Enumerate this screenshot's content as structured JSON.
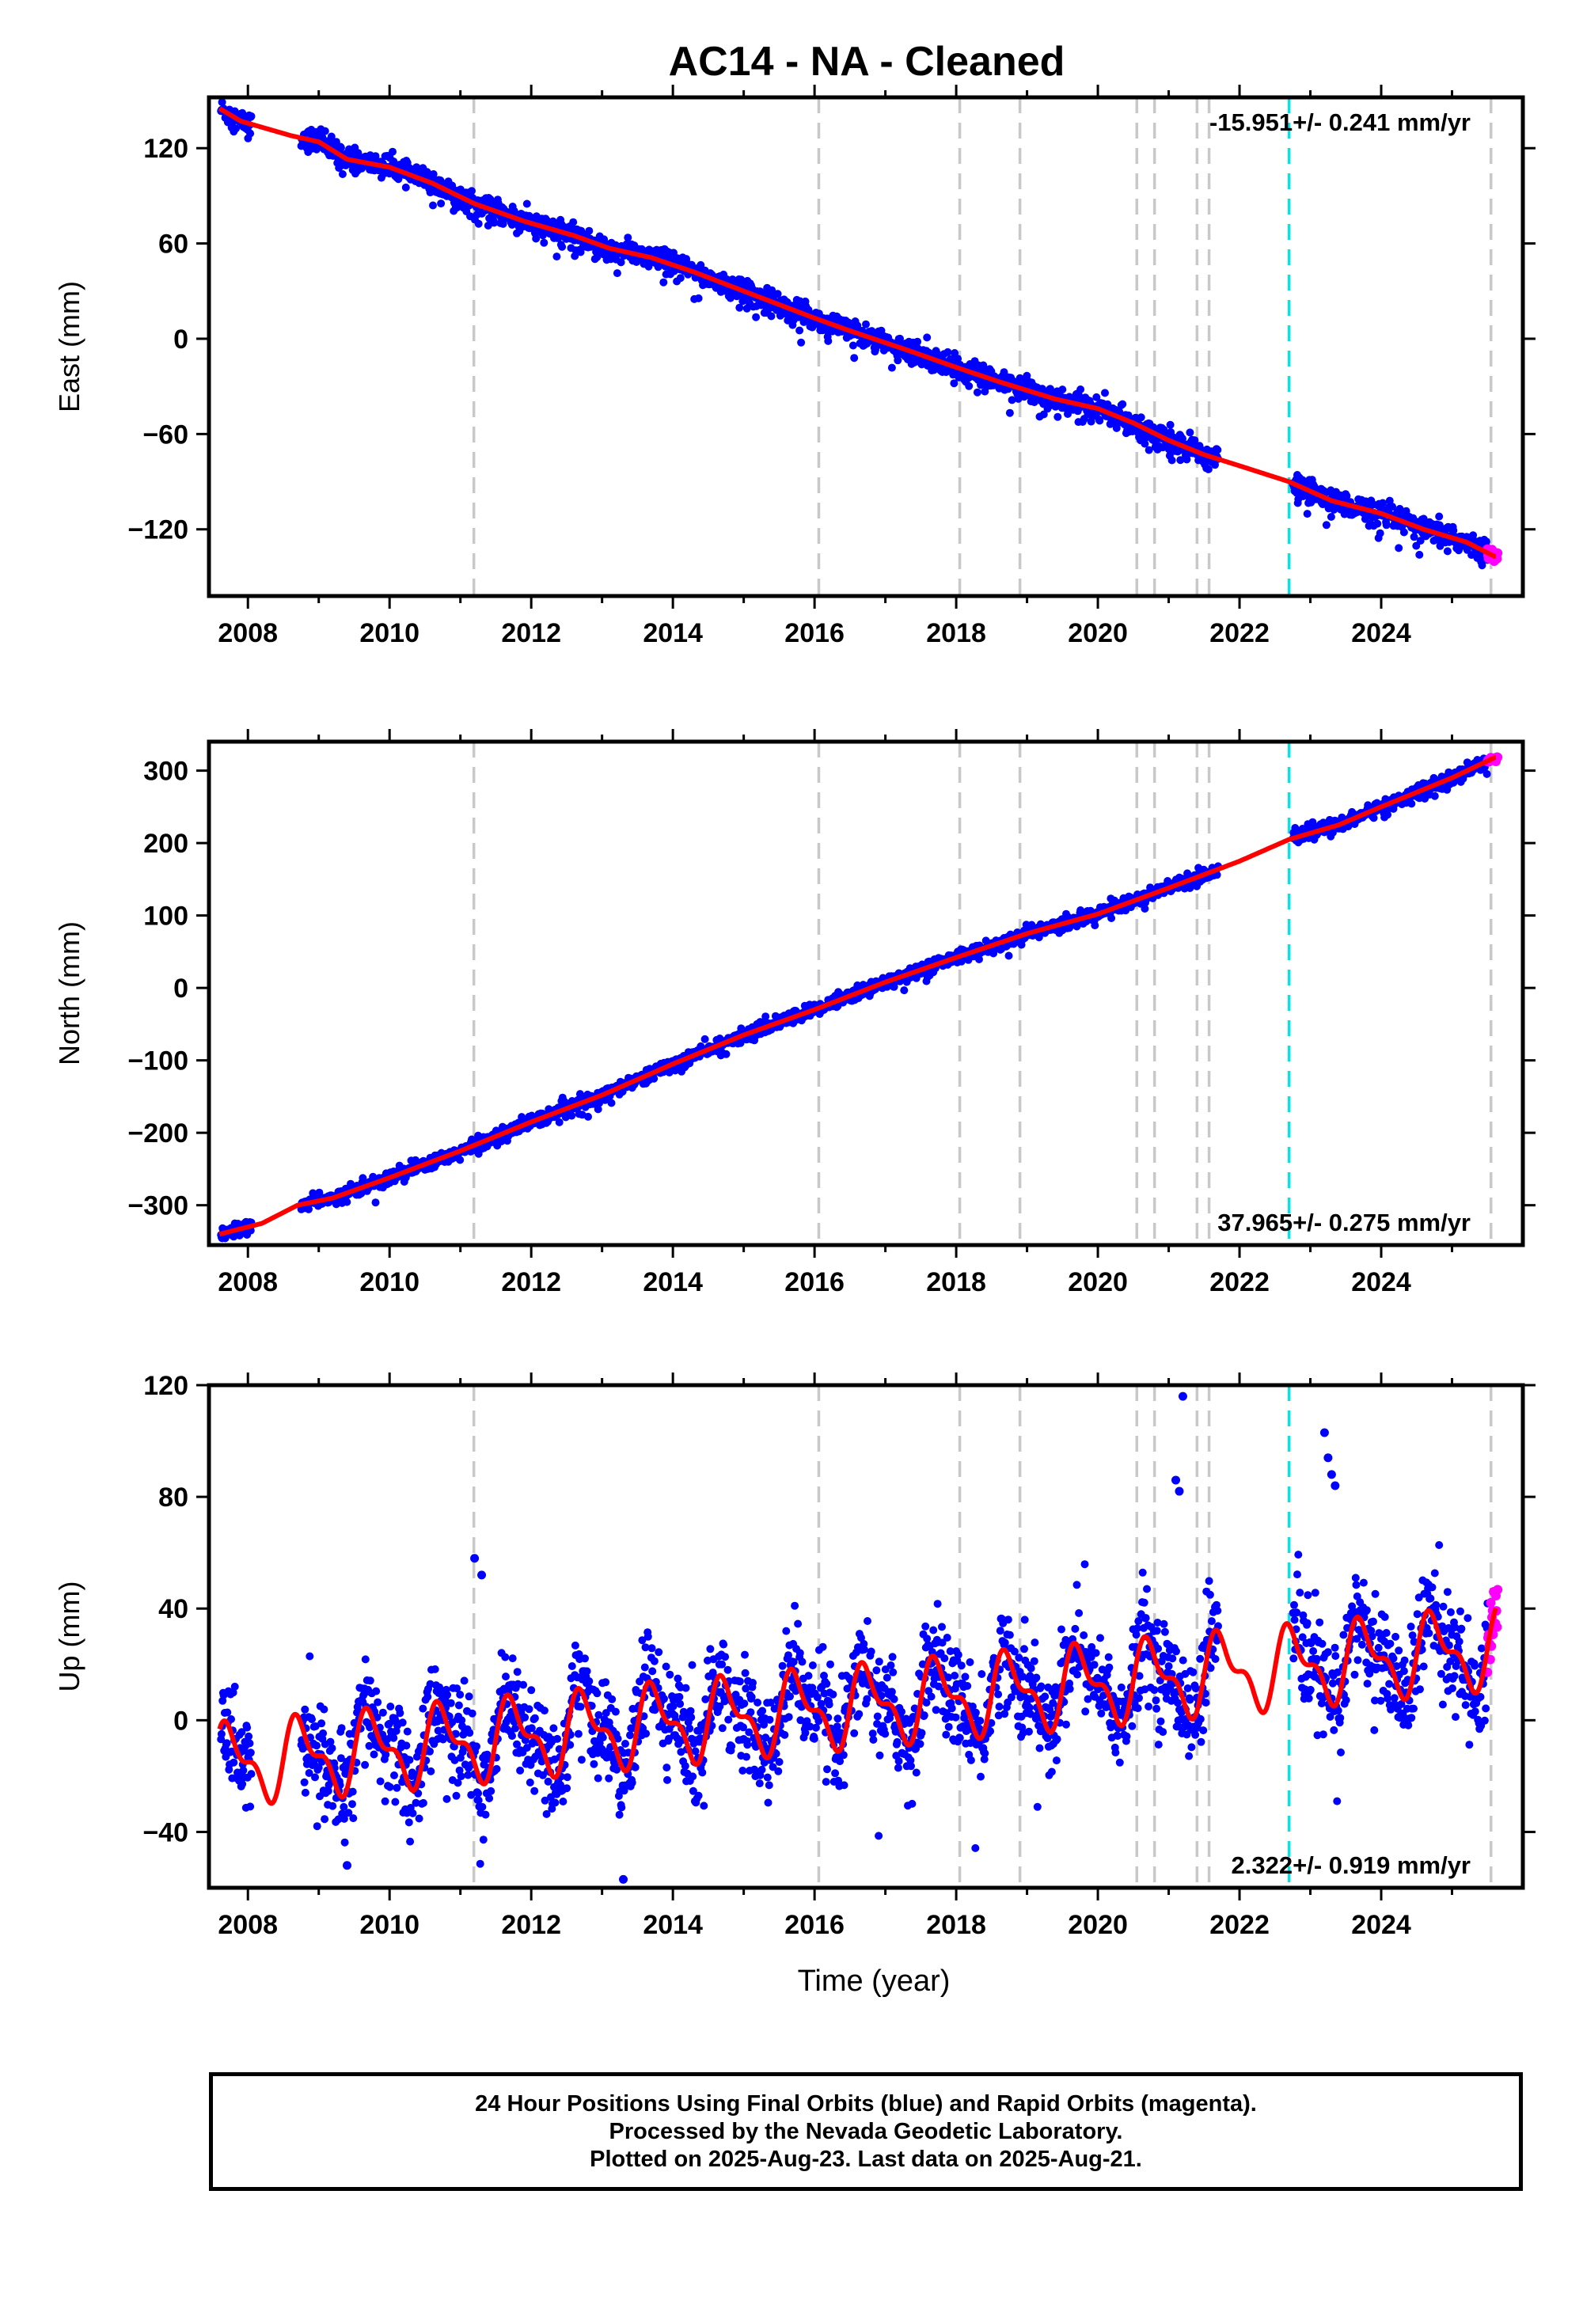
{
  "title": "AC14  - NA - Cleaned",
  "colors": {
    "final_orbits": "#0000ff",
    "rapid_orbits": "#ff00ff",
    "model": "#ff0000",
    "steps": "#c8c8c8",
    "event": "#00e5e5"
  },
  "chart_data": [
    {
      "type": "scatter",
      "panel": "east",
      "ylabel": "East (mm)",
      "xlim": [
        2007.45,
        2026.0
      ],
      "ylim": [
        -162,
        152
      ],
      "xticks": [
        2008,
        2010,
        2012,
        2014,
        2016,
        2018,
        2020,
        2022,
        2024
      ],
      "xtick_labels": [
        "2008",
        "2010",
        "2012",
        "2014",
        "2016",
        "2018",
        "2020",
        "2022",
        "2024"
      ],
      "yticks": [
        -120,
        -60,
        0,
        60,
        120
      ],
      "ytick_labels": [
        "−120",
        "−60",
        "0",
        "60",
        "120"
      ],
      "rate_label": "-15.951+/- 0.241 mm/yr",
      "rate_position": "top-right",
      "gap": [
        2021.7,
        2022.75
      ],
      "steps": [
        2011.19,
        2016.06,
        2018.05,
        2018.9,
        2020.55,
        2020.8,
        2021.4,
        2021.57,
        2025.55
      ],
      "event": 2022.7,
      "series": [
        {
          "name": "Final Orbits",
          "model_x": [
            2007.6,
            2007.9,
            2008.6,
            2009.0,
            2009.4,
            2010.0,
            2010.6,
            2011.2,
            2011.9,
            2012.6,
            2013.1,
            2013.7,
            2014.3,
            2015.0,
            2016.0,
            2016.5,
            2017.3,
            2018.0,
            2018.6,
            2019.4,
            2020.0,
            2020.5,
            2021.0,
            2021.5,
            2022.0,
            2022.7,
            2023.3,
            2024.0,
            2024.6,
            2025.2,
            2025.6
          ],
          "model_y": [
            145,
            137,
            128,
            124,
            113,
            108,
            98,
            85,
            74,
            65,
            57,
            51,
            42,
            30,
            13,
            5,
            -7,
            -18,
            -27,
            -38,
            -44,
            -53,
            -64,
            -73,
            -80,
            -90,
            -102,
            -110,
            -120,
            -128,
            -137
          ]
        }
      ]
    },
    {
      "type": "scatter",
      "panel": "north",
      "ylabel": "North (mm)",
      "xlim": [
        2007.45,
        2026.0
      ],
      "ylim": [
        -355,
        340
      ],
      "xticks": [
        2008,
        2010,
        2012,
        2014,
        2016,
        2018,
        2020,
        2022,
        2024
      ],
      "xtick_labels": [
        "2008",
        "2010",
        "2012",
        "2014",
        "2016",
        "2018",
        "2020",
        "2022",
        "2024"
      ],
      "yticks": [
        -300,
        -200,
        -100,
        0,
        100,
        200,
        300
      ],
      "ytick_labels": [
        "−300",
        "−200",
        "−100",
        "0",
        "100",
        "200",
        "300"
      ],
      "rate_label": "37.965+/- 0.275 mm/yr",
      "rate_position": "bottom-right",
      "gap": [
        2021.7,
        2022.75
      ],
      "steps": [
        2011.19,
        2016.06,
        2018.05,
        2018.9,
        2020.55,
        2020.8,
        2021.4,
        2021.57,
        2025.55
      ],
      "event": 2022.7,
      "series": [
        {
          "name": "Final Orbits",
          "model_x": [
            2007.6,
            2008.2,
            2008.7,
            2009.2,
            2010.0,
            2011.0,
            2012.0,
            2013.0,
            2014.0,
            2015.0,
            2016.0,
            2017.0,
            2018.0,
            2019.0,
            2020.0,
            2021.0,
            2022.0,
            2022.7,
            2023.4,
            2024.0,
            2025.0,
            2025.6
          ],
          "model_y": [
            -340,
            -325,
            -300,
            -290,
            -262,
            -225,
            -185,
            -148,
            -105,
            -65,
            -30,
            8,
            42,
            75,
            102,
            138,
            175,
            205,
            225,
            250,
            290,
            318
          ]
        }
      ]
    },
    {
      "type": "scatter",
      "panel": "up",
      "ylabel": "Up (mm)",
      "xlabel": "Time (year)",
      "xlim": [
        2007.45,
        2026.0
      ],
      "ylim": [
        -60,
        120
      ],
      "xticks": [
        2008,
        2010,
        2012,
        2014,
        2016,
        2018,
        2020,
        2022,
        2024
      ],
      "xtick_labels": [
        "2008",
        "2010",
        "2012",
        "2014",
        "2016",
        "2018",
        "2020",
        "2022",
        "2024"
      ],
      "yticks": [
        -40,
        0,
        40,
        80,
        120
      ],
      "ytick_labels": [
        "−40",
        "0",
        "40",
        "80",
        "120"
      ],
      "rate_label": "2.322+/- 0.919 mm/yr",
      "rate_position": "bottom-right",
      "gap": [
        2021.7,
        2022.75
      ],
      "steps": [
        2011.19,
        2016.06,
        2018.05,
        2018.9,
        2020.55,
        2020.8,
        2021.4,
        2021.57,
        2025.55
      ],
      "event": 2022.7,
      "series": [
        {
          "name": "Final Orbits",
          "trend_at_2008": -15,
          "rate": 2.322,
          "seasonal_amplitude": 12,
          "seasonal_peak_phase": 0.9
        }
      ],
      "outliers": [
        [
          2011.2,
          58
        ],
        [
          2011.3,
          52
        ],
        [
          2021.2,
          116
        ],
        [
          2021.1,
          86
        ],
        [
          2021.15,
          82
        ],
        [
          2023.2,
          103
        ],
        [
          2023.25,
          94
        ],
        [
          2023.3,
          88
        ],
        [
          2023.35,
          84
        ],
        [
          2013.3,
          -57
        ],
        [
          2009.4,
          -52
        ]
      ]
    }
  ],
  "footer": {
    "line1": "24 Hour Positions Using Final Orbits (blue) and Rapid Orbits (magenta).",
    "line2": "Processed by the Nevada Geodetic Laboratory.",
    "line3": "Plotted on 2025-Aug-23. Last data on 2025-Aug-21."
  }
}
